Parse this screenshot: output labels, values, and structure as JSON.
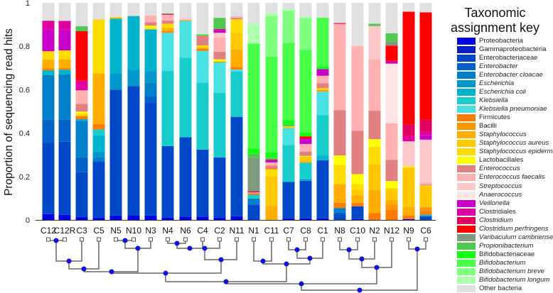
{
  "chart_data": {
    "type": "bar",
    "stacked": true,
    "ylabel": "Proportion of sequencing read hits",
    "ylim": [
      0,
      1
    ],
    "yticks": [
      "0",
      "0.2",
      "0.4",
      "0.6",
      "0.8",
      "1"
    ],
    "value_units": "percent",
    "legend_title": "Taxonomic assignment key",
    "legend_placement": "right",
    "taxa": [
      {
        "name": "Proteobacteria",
        "color": "#0000e0",
        "italic": false
      },
      {
        "name": "Gammaproteobacteria",
        "color": "#0a1ec8",
        "italic": false
      },
      {
        "name": "Enterobacteriaceae",
        "color": "#0048c8",
        "italic": false
      },
      {
        "name": "Enterobacter",
        "color": "#0062c8",
        "italic": true
      },
      {
        "name": "Enterobacter cloacae",
        "color": "#0080c8",
        "italic": true
      },
      {
        "name": "Escherichia",
        "color": "#0098cc",
        "italic": true
      },
      {
        "name": "Escherichia coli",
        "color": "#00b4cc",
        "italic": true
      },
      {
        "name": "Klebsiella",
        "color": "#18cccc",
        "italic": true
      },
      {
        "name": "Klebsiella pneumoniae",
        "color": "#48e2e2",
        "italic": true
      },
      {
        "name": "Firmicutes",
        "color": "#ff7a00",
        "italic": false
      },
      {
        "name": "Bacilli",
        "color": "#ff9600",
        "italic": false
      },
      {
        "name": "Staphylococcus",
        "color": "#ffae00",
        "italic": true
      },
      {
        "name": "Staphylococcus aureus",
        "color": "#ffc800",
        "italic": true
      },
      {
        "name": "Staphylococcus epidermidis",
        "color": "#ffdc00",
        "italic": true
      },
      {
        "name": "Lactobacillales",
        "color": "#ffff00",
        "italic": false
      },
      {
        "name": "Enterococcus",
        "color": "#e08080",
        "italic": true
      },
      {
        "name": "Enterococcus faecalis",
        "color": "#ffb0b0",
        "italic": true
      },
      {
        "name": "Streptococcus",
        "color": "#ffc8c8",
        "italic": true
      },
      {
        "name": "Anaerococcus",
        "color": "#ffe4e4",
        "italic": true
      },
      {
        "name": "Veillonella",
        "color": "#c800c8",
        "italic": true
      },
      {
        "name": "Clostridiales",
        "color": "#e000a0",
        "italic": false
      },
      {
        "name": "Clostridium",
        "color": "#e00060",
        "italic": true
      },
      {
        "name": "Clostridium perfringens",
        "color": "#ff0000",
        "italic": true
      },
      {
        "name": "Varibaculum cambriense",
        "color": "#7f9a7f",
        "italic": true
      },
      {
        "name": "Propionibacterium",
        "color": "#50c850",
        "italic": true
      },
      {
        "name": "Bifidobacteriaceae",
        "color": "#10ff10",
        "italic": false
      },
      {
        "name": "Bifidobacterium",
        "color": "#48ff48",
        "italic": true
      },
      {
        "name": "Bifidobacterium breve",
        "color": "#80ff80",
        "italic": true
      },
      {
        "name": "Bifidobacterium longum",
        "color": "#b0ffb0",
        "italic": true
      },
      {
        "name": "Other bacteria",
        "color": "#e0e0e0",
        "italic": false
      }
    ],
    "categories": [
      "C12",
      "C12R",
      "C3",
      "C5",
      "N5",
      "N10",
      "N3",
      "N4",
      "N6",
      "C4",
      "C2",
      "N11",
      "N1",
      "C11",
      "C7",
      "C8",
      "C1",
      "N8",
      "C10",
      "N2",
      "N12",
      "N9",
      "C6"
    ],
    "series_segments": [
      [
        [
          0,
          2.7
        ],
        [
          2,
          32.9
        ],
        [
          3,
          10.5
        ],
        [
          4,
          20.6
        ],
        [
          6,
          2.2
        ],
        [
          9,
          0.9
        ],
        [
          11,
          4.1
        ],
        [
          13,
          3.8
        ],
        [
          19,
          10.0
        ],
        [
          20,
          4.0
        ],
        [
          24,
          0.2
        ],
        [
          29,
          8.1
        ]
      ],
      [
        [
          0,
          2.4
        ],
        [
          2,
          33.6
        ],
        [
          3,
          10.1
        ],
        [
          4,
          20.9
        ],
        [
          6,
          2.2
        ],
        [
          9,
          0.7
        ],
        [
          11,
          4.1
        ],
        [
          13,
          4.1
        ],
        [
          19,
          9.6
        ],
        [
          20,
          4.0
        ],
        [
          29,
          8.3
        ]
      ],
      [
        [
          0,
          1.3
        ],
        [
          2,
          20.7
        ],
        [
          3,
          6.8
        ],
        [
          4,
          16.9
        ],
        [
          6,
          0.7
        ],
        [
          9,
          1.5
        ],
        [
          13,
          1.1
        ],
        [
          14,
          0.9
        ],
        [
          15,
          3.6
        ],
        [
          16,
          6.2
        ],
        [
          20,
          4.4
        ],
        [
          22,
          22.9
        ],
        [
          24,
          2.2
        ],
        [
          29,
          10.8
        ]
      ],
      [
        [
          0,
          1.1
        ],
        [
          2,
          25.9
        ],
        [
          4,
          2.0
        ],
        [
          5,
          2.4
        ],
        [
          6,
          7.6
        ],
        [
          7,
          2.7
        ],
        [
          9,
          2.4
        ],
        [
          11,
          23.4
        ],
        [
          13,
          24.8
        ],
        [
          16,
          0.2
        ],
        [
          29,
          7.5
        ]
      ],
      [
        [
          0,
          2.0
        ],
        [
          2,
          58.0
        ],
        [
          5,
          7.6
        ],
        [
          6,
          25.1
        ],
        [
          11,
          0.5
        ],
        [
          13,
          0.3
        ],
        [
          29,
          6.5
        ]
      ],
      [
        [
          0,
          2.2
        ],
        [
          2,
          59.5
        ],
        [
          5,
          7.4
        ],
        [
          6,
          24.8
        ],
        [
          16,
          0.2
        ],
        [
          29,
          5.9
        ]
      ],
      [
        [
          0,
          2.0
        ],
        [
          2,
          51.9
        ],
        [
          3,
          2.8
        ],
        [
          4,
          6.5
        ],
        [
          5,
          5.4
        ],
        [
          6,
          19.2
        ],
        [
          13,
          0.9
        ],
        [
          14,
          0.7
        ],
        [
          15,
          1.7
        ],
        [
          16,
          3.1
        ],
        [
          29,
          5.8
        ]
      ],
      [
        [
          0,
          1.1
        ],
        [
          2,
          32.9
        ],
        [
          7,
          34.6
        ],
        [
          8,
          17.6
        ],
        [
          9,
          0.7
        ],
        [
          11,
          1.5
        ],
        [
          13,
          2.0
        ],
        [
          15,
          1.5
        ],
        [
          16,
          2.6
        ],
        [
          21,
          0.4
        ],
        [
          24,
          0.2
        ],
        [
          29,
          4.9
        ]
      ],
      [
        [
          0,
          1.5
        ],
        [
          2,
          36.6
        ],
        [
          7,
          36.6
        ],
        [
          8,
          17.0
        ],
        [
          10,
          0.4
        ],
        [
          17,
          1.1
        ],
        [
          29,
          6.8
        ]
      ],
      [
        [
          0,
          1.5
        ],
        [
          2,
          30.9
        ],
        [
          7,
          30.9
        ],
        [
          8,
          14.6
        ],
        [
          9,
          0.9
        ],
        [
          11,
          0.7
        ],
        [
          13,
          0.9
        ],
        [
          15,
          4.6
        ],
        [
          25,
          0.5
        ],
        [
          29,
          14.5
        ]
      ],
      [
        [
          0,
          1.1
        ],
        [
          2,
          27.7
        ],
        [
          7,
          29.8
        ],
        [
          8,
          13.9
        ],
        [
          9,
          0.4
        ],
        [
          14,
          1.1
        ],
        [
          15,
          3.5
        ],
        [
          16,
          6.5
        ],
        [
          17,
          2.2
        ],
        [
          19,
          1.3
        ],
        [
          21,
          0.4
        ],
        [
          24,
          5.2
        ],
        [
          29,
          6.9
        ]
      ],
      [
        [
          0,
          1.7
        ],
        [
          2,
          45.8
        ],
        [
          7,
          20.9
        ],
        [
          8,
          0.9
        ],
        [
          9,
          1.1
        ],
        [
          11,
          8.1
        ],
        [
          12,
          7.8
        ],
        [
          13,
          6.1
        ],
        [
          15,
          0.7
        ],
        [
          16,
          0.7
        ],
        [
          29,
          6.2
        ]
      ],
      [
        [
          2,
          7.1
        ],
        [
          4,
          2.8
        ],
        [
          7,
          1.7
        ],
        [
          9,
          0.7
        ],
        [
          16,
          0.4
        ],
        [
          21,
          0.5
        ],
        [
          23,
          15.3
        ],
        [
          24,
          2.0
        ],
        [
          25,
          2.4
        ],
        [
          26,
          48.3
        ],
        [
          28,
          9.2
        ],
        [
          29,
          9.6
        ]
      ],
      [
        [
          11,
          6.5
        ],
        [
          12,
          13.7
        ],
        [
          13,
          3.1
        ],
        [
          9,
          0.4
        ],
        [
          15,
          1.3
        ],
        [
          16,
          1.5
        ],
        [
          19,
          0.9
        ],
        [
          21,
          0.4
        ],
        [
          24,
          0.9
        ],
        [
          25,
          2.4
        ],
        [
          26,
          44.2
        ],
        [
          27,
          18.7
        ],
        [
          28,
          1.5
        ],
        [
          29,
          4.5
        ]
      ],
      [
        [
          0,
          0.7
        ],
        [
          2,
          16.8
        ],
        [
          7,
          17.0
        ],
        [
          8,
          7.8
        ],
        [
          11,
          0.4
        ],
        [
          13,
          0.4
        ],
        [
          24,
          0.9
        ],
        [
          25,
          2.0
        ],
        [
          26,
          35.5
        ],
        [
          27,
          15.0
        ],
        [
          28,
          0.7
        ],
        [
          29,
          2.8
        ]
      ],
      [
        [
          0,
          0.7
        ],
        [
          2,
          17.4
        ],
        [
          6,
          0.9
        ],
        [
          7,
          7.4
        ],
        [
          11,
          0.7
        ],
        [
          12,
          2.0
        ],
        [
          14,
          0.4
        ],
        [
          15,
          2.0
        ],
        [
          16,
          3.5
        ],
        [
          19,
          2.4
        ],
        [
          22,
          1.1
        ],
        [
          25,
          1.7
        ],
        [
          26,
          38.1
        ],
        [
          27,
          14.8
        ],
        [
          28,
          0.7
        ],
        [
          29,
          6.2
        ]
      ],
      [
        [
          0,
          0.7
        ],
        [
          2,
          26.8
        ],
        [
          6,
          2.2
        ],
        [
          7,
          18.5
        ],
        [
          8,
          10.9
        ],
        [
          10,
          0.7
        ],
        [
          13,
          0.9
        ],
        [
          15,
          2.2
        ],
        [
          16,
          3.5
        ],
        [
          19,
          3.1
        ],
        [
          25,
          1.3
        ],
        [
          26,
          22.4
        ],
        [
          29,
          6.8
        ]
      ],
      [
        [
          2,
          2.6
        ],
        [
          3,
          0.9
        ],
        [
          4,
          2.0
        ],
        [
          9,
          2.4
        ],
        [
          11,
          8.7
        ],
        [
          13,
          8.7
        ],
        [
          14,
          4.4
        ],
        [
          15,
          20.9
        ],
        [
          16,
          39.7
        ],
        [
          21,
          0.4
        ],
        [
          29,
          9.3
        ]
      ],
      [
        [
          0,
          0.4
        ],
        [
          2,
          5.9
        ],
        [
          9,
          1.5
        ],
        [
          11,
          3.5
        ],
        [
          12,
          2.4
        ],
        [
          13,
          2.8
        ],
        [
          14,
          4.6
        ],
        [
          15,
          20.0
        ],
        [
          16,
          39.0
        ],
        [
          29,
          19.9
        ]
      ],
      [
        [
          9,
          3.1
        ],
        [
          11,
          10.7
        ],
        [
          12,
          11.8
        ],
        [
          13,
          8.1
        ],
        [
          14,
          3.5
        ],
        [
          15,
          13.1
        ],
        [
          16,
          23.7
        ],
        [
          17,
          15.3
        ],
        [
          24,
          1.1
        ],
        [
          29,
          9.6
        ]
      ],
      [
        [
          9,
          4.8
        ],
        [
          10,
          2.2
        ],
        [
          11,
          2.2
        ],
        [
          12,
          5.4
        ],
        [
          14,
          3.3
        ],
        [
          15,
          9.8
        ],
        [
          16,
          16.8
        ],
        [
          18,
          27.5
        ],
        [
          20,
          1.3
        ],
        [
          22,
          7.0
        ],
        [
          23,
          2.0
        ],
        [
          24,
          3.7
        ],
        [
          29,
          14.0
        ]
      ],
      [
        [
          0,
          0.4
        ],
        [
          9,
          1.7
        ],
        [
          11,
          3.9
        ],
        [
          12,
          18.3
        ],
        [
          14,
          0.4
        ],
        [
          17,
          11.5
        ],
        [
          20,
          2.4
        ],
        [
          21,
          5.4
        ],
        [
          22,
          51.9
        ],
        [
          29,
          4.1
        ]
      ],
      [
        [
          2,
          1.7
        ],
        [
          6,
          0.7
        ],
        [
          9,
          1.7
        ],
        [
          10,
          1.5
        ],
        [
          11,
          0.7
        ],
        [
          12,
          9.2
        ],
        [
          13,
          0.4
        ],
        [
          15,
          0.4
        ],
        [
          16,
          0.9
        ],
        [
          17,
          19.8
        ],
        [
          19,
          2.0
        ],
        [
          20,
          1.7
        ],
        [
          21,
          5.4
        ],
        [
          22,
          49.5
        ],
        [
          29,
          4.4
        ]
      ]
    ]
  }
}
